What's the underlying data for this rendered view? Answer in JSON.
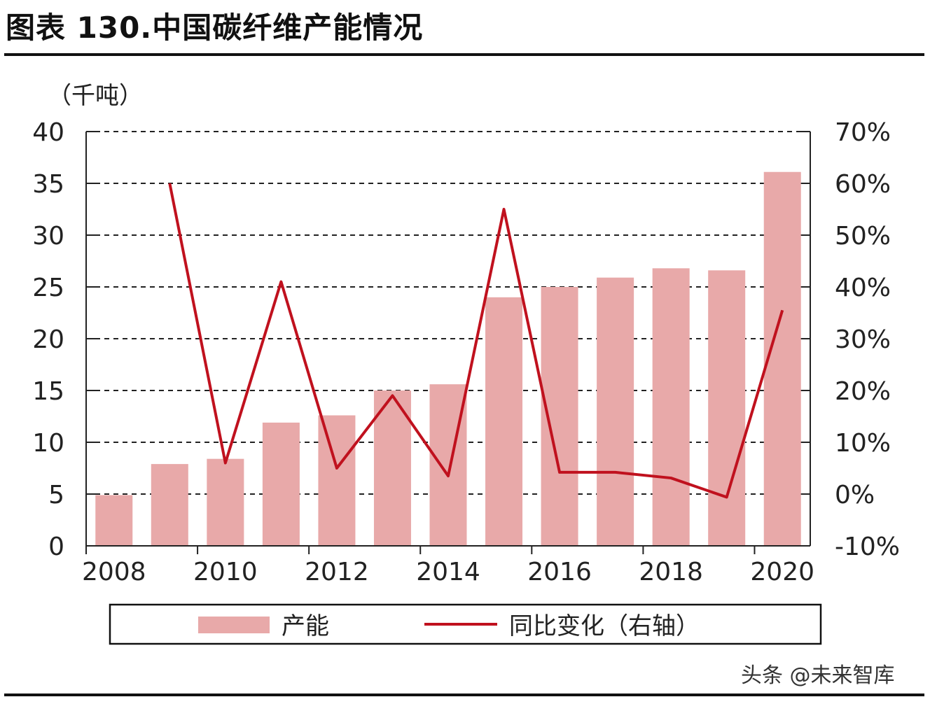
{
  "header": {
    "title": "图表 130.中国碳纤维产能情况"
  },
  "watermark": "头条 @未来智库",
  "chart_data": {
    "type": "bar",
    "left_axis_unit": "（千吨）",
    "y_left": {
      "min": 0,
      "max": 40,
      "ticks": [
        "0",
        "5",
        "10",
        "15",
        "20",
        "25",
        "30",
        "35",
        "40"
      ]
    },
    "y_right": {
      "min": -10,
      "max": 70,
      "ticks": [
        "-10%",
        "0%",
        "10%",
        "20%",
        "30%",
        "40%",
        "50%",
        "60%",
        "70%"
      ]
    },
    "x": [
      2008,
      2009,
      2010,
      2011,
      2012,
      2013,
      2014,
      2015,
      2016,
      2017,
      2018,
      2019,
      2020
    ],
    "x_tick_labels": [
      "2008",
      "2010",
      "2012",
      "2014",
      "2016",
      "2018",
      "2020"
    ],
    "series": [
      {
        "name": "产能",
        "type": "bar",
        "axis": "left",
        "color": "#e8a9a9",
        "values": [
          4.9,
          7.9,
          8.4,
          11.9,
          12.6,
          15.0,
          15.6,
          24.0,
          25.0,
          25.9,
          26.8,
          26.6,
          36.1
        ]
      },
      {
        "name": "同比变化（右轴）",
        "type": "line",
        "axis": "right",
        "color": "#c0111e",
        "values": [
          null,
          60.0,
          6.0,
          41.0,
          5.0,
          19.0,
          3.5,
          55.0,
          4.2,
          4.2,
          3.1,
          -0.6,
          35.5
        ]
      }
    ],
    "grid": "horizontal-dashed",
    "legend_position": "bottom"
  }
}
